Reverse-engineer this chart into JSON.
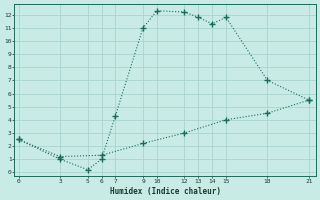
{
  "line1_x": [
    0,
    3,
    5,
    6,
    7,
    9,
    10,
    12,
    13,
    14,
    15,
    18,
    21
  ],
  "line1_y": [
    2.5,
    1.0,
    0.2,
    1.0,
    4.3,
    11.0,
    12.3,
    12.2,
    11.8,
    11.3,
    11.8,
    7.0,
    5.5
  ],
  "line2_x": [
    0,
    3,
    6,
    9,
    12,
    15,
    18,
    21
  ],
  "line2_y": [
    2.5,
    1.2,
    1.3,
    2.2,
    3.0,
    4.0,
    4.5,
    5.5
  ],
  "line_color": "#1a6b5a",
  "bg_color": "#c8ebe5",
  "grid_color": "#a8d4cc",
  "xlabel": "Humidex (Indice chaleur)",
  "xticks": [
    0,
    3,
    5,
    6,
    7,
    9,
    10,
    12,
    13,
    14,
    15,
    18,
    21
  ],
  "yticks": [
    0,
    1,
    2,
    3,
    4,
    5,
    6,
    7,
    8,
    9,
    10,
    11,
    12
  ],
  "xlim": [
    -0.3,
    21.5
  ],
  "ylim": [
    -0.3,
    12.8
  ]
}
